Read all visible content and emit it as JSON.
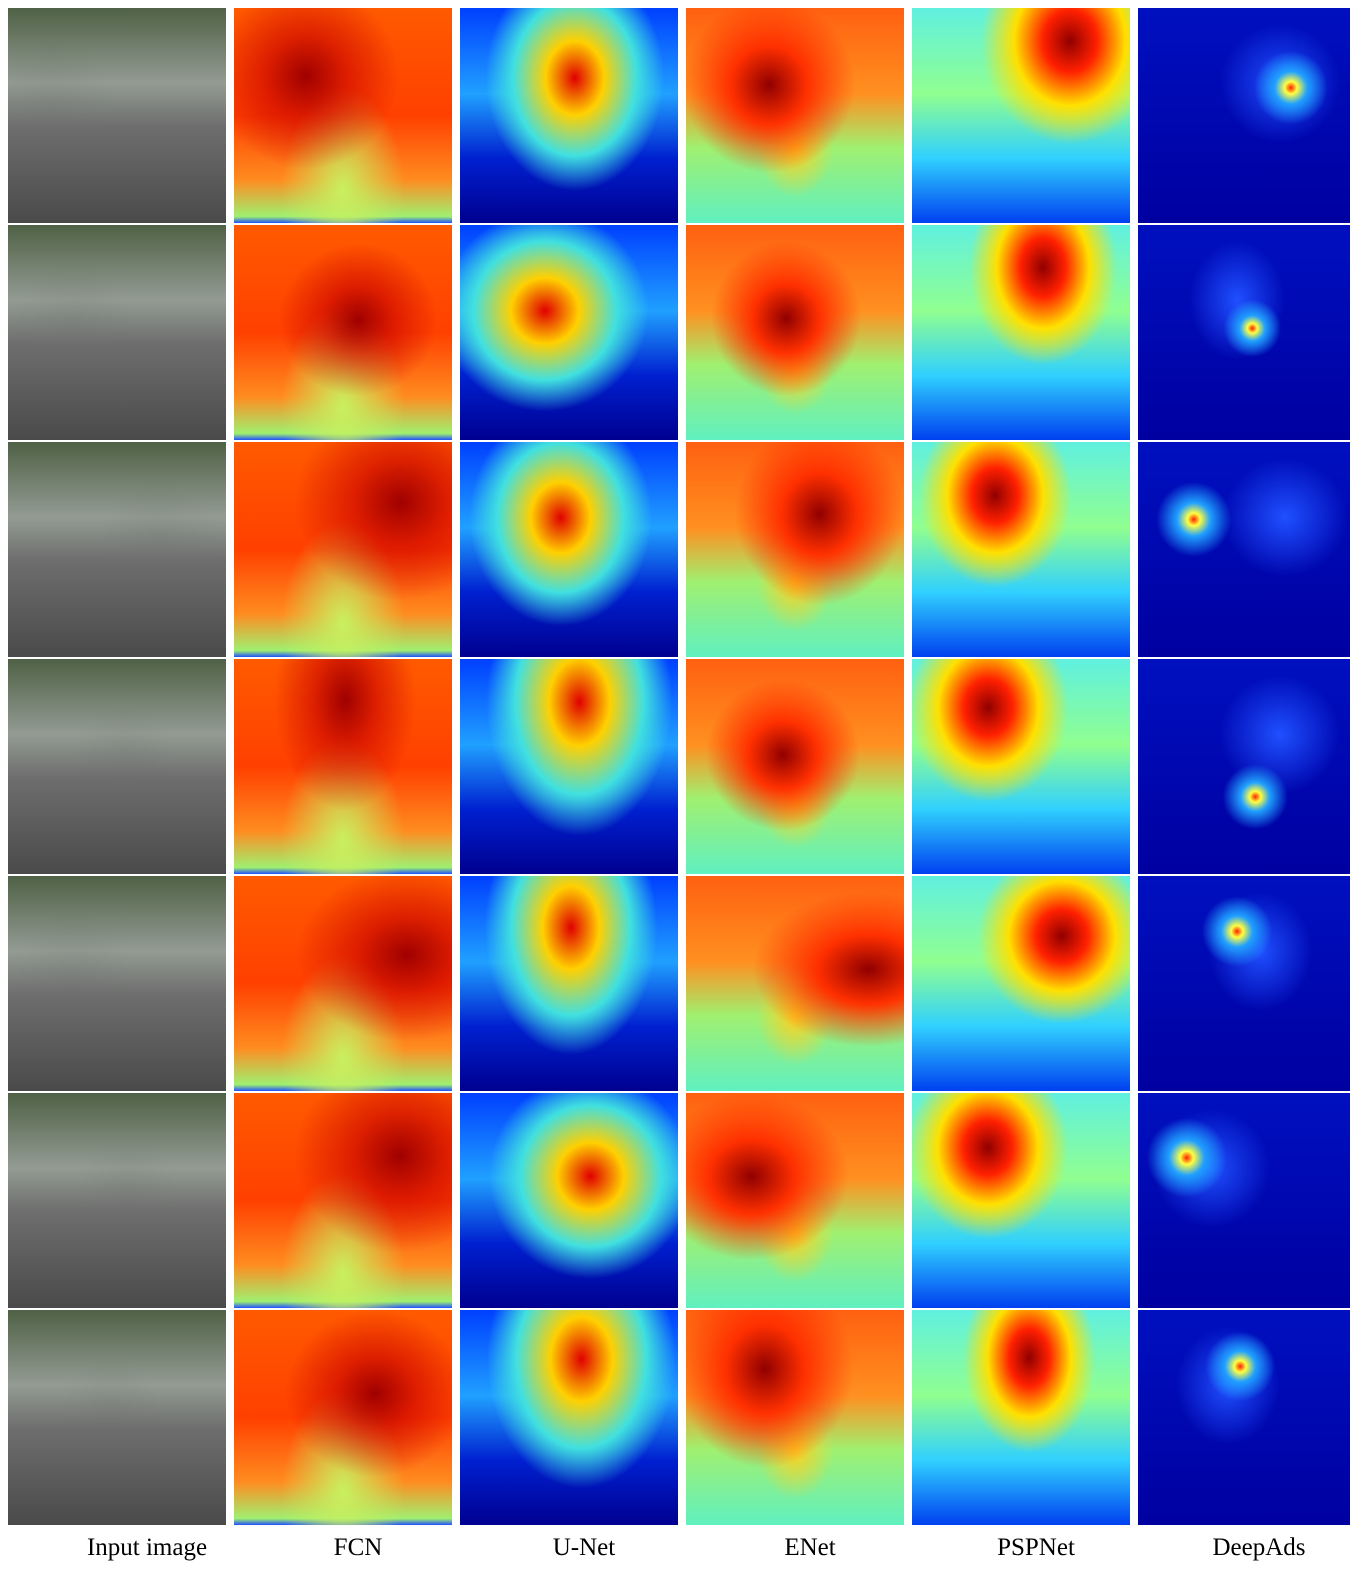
{
  "figure": {
    "columns": [
      "Input image",
      "FCN",
      "U-Net",
      "ENet",
      "PSPNet",
      "DeepAds"
    ]
  }
}
